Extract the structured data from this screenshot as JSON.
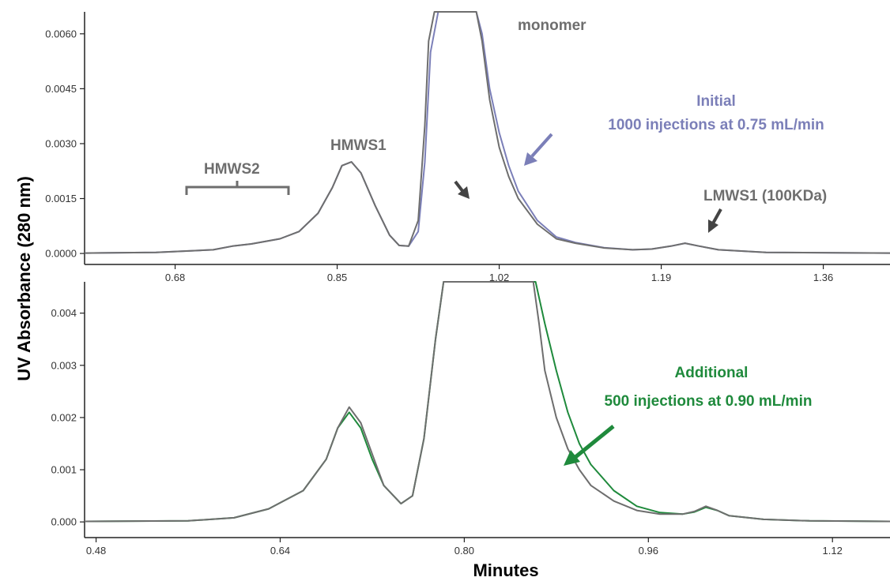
{
  "ylabel": "UV Absorbance (280 nm)",
  "xlabel": "Minutes",
  "colors": {
    "gray": "#6e6e6e",
    "blue": "#7b7fb8",
    "green": "#1f8a3c",
    "axis": "#222222"
  },
  "chart_data": [
    {
      "type": "line",
      "xlim": [
        0.585,
        1.43
      ],
      "ylim": [
        -0.0003,
        0.0066
      ],
      "xticks": [
        "0.68",
        "0.85",
        "1.02",
        "1.19",
        "1.36"
      ],
      "xtick_values": [
        0.68,
        0.85,
        1.02,
        1.19,
        1.36
      ],
      "yticks": [
        "0.0000",
        "0.0015",
        "0.0030",
        "0.0045",
        "0.0060"
      ],
      "ytick_values": [
        0,
        0.0015,
        0.003,
        0.0045,
        0.006
      ],
      "series": [
        {
          "color": "#7b7fb8",
          "x": [
            0.585,
            0.66,
            0.72,
            0.74,
            0.76,
            0.79,
            0.81,
            0.83,
            0.845,
            0.855,
            0.865,
            0.875,
            0.89,
            0.905,
            0.915,
            0.925,
            0.935,
            0.942,
            0.948,
            0.956,
            0.996,
            1.002,
            1.01,
            1.02,
            1.03,
            1.04,
            1.06,
            1.08,
            1.1,
            1.13,
            1.16,
            1.18,
            1.2,
            1.215,
            1.23,
            1.25,
            1.3,
            1.43
          ],
          "y": [
            1e-05,
            3e-05,
            0.0001,
            0.0002,
            0.00026,
            0.0004,
            0.0006,
            0.0011,
            0.0018,
            0.0024,
            0.0025,
            0.0022,
            0.0013,
            0.0005,
            0.00022,
            0.0002,
            0.0006,
            0.0025,
            0.0055,
            0.0066,
            0.0066,
            0.006,
            0.0045,
            0.0033,
            0.0024,
            0.0017,
            0.0009,
            0.00045,
            0.0003,
            0.00016,
            0.0001,
            0.00012,
            0.0002,
            0.00028,
            0.0002,
            0.0001,
            3e-05,
            1e-05
          ]
        },
        {
          "color": "#6e6e6e",
          "x": [
            0.585,
            0.66,
            0.72,
            0.74,
            0.76,
            0.79,
            0.81,
            0.83,
            0.845,
            0.855,
            0.865,
            0.875,
            0.89,
            0.905,
            0.915,
            0.925,
            0.935,
            0.942,
            0.946,
            0.952,
            0.996,
            1.002,
            1.01,
            1.02,
            1.03,
            1.04,
            1.06,
            1.08,
            1.1,
            1.13,
            1.16,
            1.18,
            1.2,
            1.215,
            1.23,
            1.25,
            1.3,
            1.43
          ],
          "y": [
            1e-05,
            3e-05,
            0.0001,
            0.0002,
            0.00026,
            0.0004,
            0.0006,
            0.0011,
            0.0018,
            0.0024,
            0.0025,
            0.0022,
            0.0013,
            0.0005,
            0.00022,
            0.0002,
            0.0009,
            0.0035,
            0.0058,
            0.0066,
            0.0066,
            0.0058,
            0.0042,
            0.0029,
            0.0021,
            0.0015,
            0.0008,
            0.0004,
            0.00028,
            0.00015,
            0.0001,
            0.00012,
            0.0002,
            0.00028,
            0.0002,
            0.0001,
            3e-05,
            1e-05
          ]
        }
      ],
      "annotations": {
        "monomer": "monomer",
        "hmws1": "HMWS1",
        "hmws2": "HMWS2",
        "lmws1": "LMWS1 (100KDa)",
        "initial_title": "Initial",
        "initial_detail": "1000 injections at 0.75 mL/min"
      }
    },
    {
      "type": "line",
      "xlim": [
        0.47,
        1.17
      ],
      "ylim": [
        -0.0003,
        0.0046
      ],
      "xticks": [
        "0.48",
        "0.64",
        "0.80",
        "0.96",
        "1.12"
      ],
      "xtick_values": [
        0.48,
        0.64,
        0.8,
        0.96,
        1.12
      ],
      "yticks": [
        "0.000",
        "0.001",
        "0.002",
        "0.003",
        "0.004"
      ],
      "ytick_values": [
        0,
        0.001,
        0.002,
        0.003,
        0.004
      ],
      "series": [
        {
          "color": "#1f8a3c",
          "x": [
            0.47,
            0.56,
            0.6,
            0.63,
            0.66,
            0.68,
            0.69,
            0.7,
            0.71,
            0.72,
            0.73,
            0.745,
            0.755,
            0.765,
            0.775,
            0.782,
            0.788,
            0.862,
            0.87,
            0.88,
            0.89,
            0.9,
            0.91,
            0.93,
            0.95,
            0.97,
            0.99,
            1.0,
            1.01,
            1.02,
            1.03,
            1.06,
            1.1,
            1.17
          ],
          "y": [
            1e-05,
            2e-05,
            8e-05,
            0.00025,
            0.0006,
            0.0012,
            0.0018,
            0.0021,
            0.0018,
            0.0012,
            0.0007,
            0.00035,
            0.0005,
            0.0016,
            0.0035,
            0.0046,
            0.0046,
            0.0046,
            0.0038,
            0.0029,
            0.0021,
            0.0015,
            0.0011,
            0.0006,
            0.0003,
            0.00018,
            0.00015,
            0.00019,
            0.00028,
            0.00022,
            0.00012,
            5e-05,
            2e-05,
            1e-05
          ]
        },
        {
          "color": "#6e6e6e",
          "x": [
            0.47,
            0.56,
            0.6,
            0.63,
            0.66,
            0.68,
            0.69,
            0.7,
            0.71,
            0.72,
            0.73,
            0.745,
            0.755,
            0.765,
            0.775,
            0.782,
            0.788,
            0.86,
            0.865,
            0.87,
            0.88,
            0.89,
            0.9,
            0.91,
            0.93,
            0.95,
            0.97,
            0.99,
            1.0,
            1.01,
            1.02,
            1.03,
            1.06,
            1.1,
            1.17
          ],
          "y": [
            1e-05,
            2e-05,
            8e-05,
            0.00025,
            0.0006,
            0.0012,
            0.0018,
            0.0022,
            0.0019,
            0.0013,
            0.0007,
            0.00035,
            0.0005,
            0.0016,
            0.0035,
            0.0046,
            0.0046,
            0.0046,
            0.0038,
            0.0029,
            0.002,
            0.0014,
            0.001,
            0.0007,
            0.0004,
            0.00022,
            0.00015,
            0.00015,
            0.0002,
            0.0003,
            0.00022,
            0.00012,
            5e-05,
            2e-05,
            1e-05
          ]
        }
      ],
      "annotations": {
        "additional_title": "Additional",
        "additional_detail": "500 injections at 0.90 mL/min"
      }
    }
  ]
}
